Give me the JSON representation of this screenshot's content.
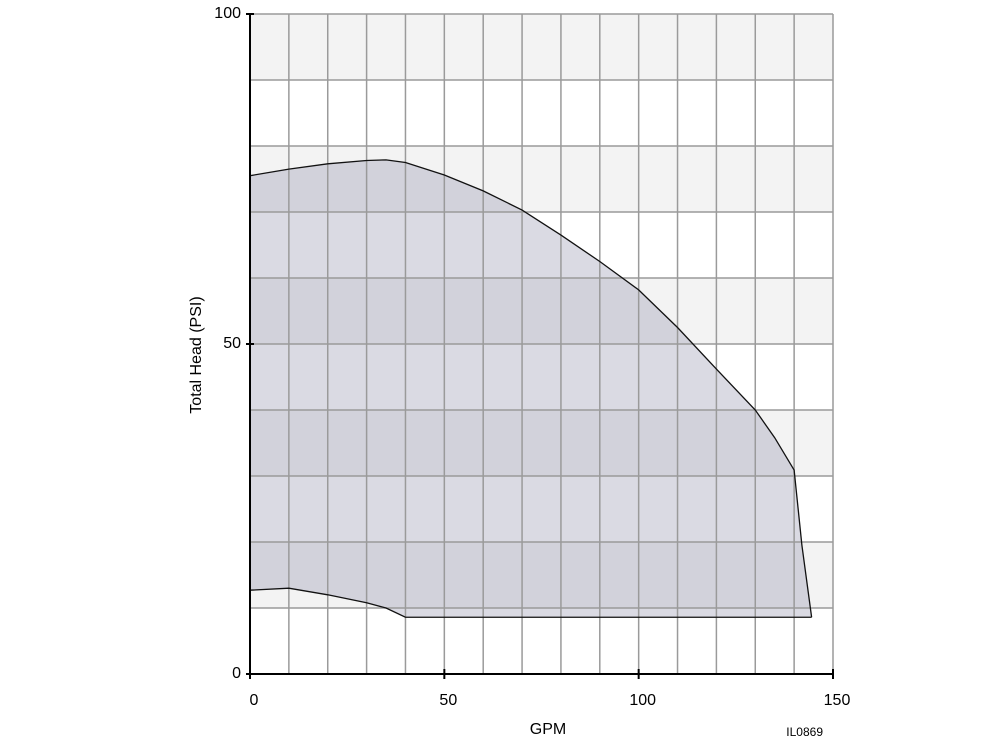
{
  "chart_data": {
    "type": "area",
    "xlabel": "GPM",
    "ylabel": "Total Head (PSI)",
    "annotation": "IL0869",
    "xlim": [
      0,
      150
    ],
    "ylim": [
      0,
      100
    ],
    "xticks": [
      0,
      50,
      100,
      150
    ],
    "yticks": [
      0,
      50,
      100
    ],
    "xgrid": [
      10,
      20,
      30,
      40,
      50,
      60,
      70,
      80,
      90,
      100,
      110,
      120,
      130,
      140,
      150
    ],
    "ygrid": [
      10,
      20,
      30,
      40,
      50,
      60,
      70,
      80,
      90,
      100
    ],
    "color": "#9696af",
    "band_color": "#f3f3f3",
    "series": [
      {
        "x": [
          0,
          10,
          20,
          30,
          35,
          40,
          50,
          60,
          70,
          80,
          90,
          100,
          110,
          120,
          130,
          135,
          140,
          142,
          144.5
        ],
        "values": [
          75.5,
          76.5,
          77.3,
          77.8,
          77.9,
          77.5,
          75.6,
          73.2,
          70.3,
          66.5,
          62.5,
          58.2,
          52.5,
          46.2,
          40,
          35.8,
          30.9,
          19.5,
          8.6
        ]
      },
      {
        "x": [
          0,
          10,
          20,
          30,
          35,
          40,
          144.5
        ],
        "values": [
          12.7,
          13,
          12,
          10.8,
          10,
          8.6,
          8.6
        ]
      }
    ]
  }
}
